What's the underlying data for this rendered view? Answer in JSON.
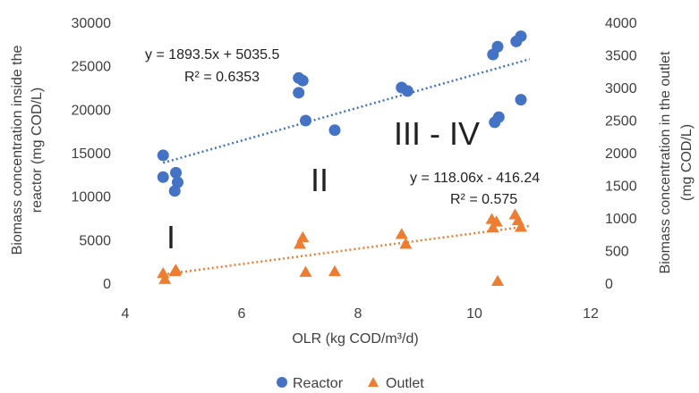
{
  "chart_data": {
    "type": "scatter",
    "xlabel": "OLR (kg COD/m³/d)",
    "ylabel": "Biomass concentration inside the reactor (mg COD/L)",
    "ylabel_lines": [
      "Biomass concentration inside the",
      "reactor (mg COD/L)"
    ],
    "y2label": "Biomass concentration in the outlet (mg COD/L)",
    "y2label_lines": [
      "Biomass concentration in the outlet",
      "(mg COD/L)"
    ],
    "xlim": [
      4,
      12
    ],
    "ylim": [
      0,
      30000
    ],
    "y2lim": [
      0,
      4000
    ],
    "xticks": [
      "4",
      "6",
      "8",
      "10",
      "12"
    ],
    "yticks": [
      "0",
      "5000",
      "10000",
      "15000",
      "20000",
      "25000",
      "30000"
    ],
    "y2ticks": [
      "0",
      "500",
      "1000",
      "1500",
      "2000",
      "2500",
      "3000",
      "3500",
      "4000"
    ],
    "grid": false,
    "legend_position": "bottom",
    "series": [
      {
        "name": "Reactor",
        "axis": "left",
        "marker": "circle",
        "color": "#4472C4",
        "points": [
          [
            4.65,
            14700
          ],
          [
            4.65,
            12200
          ],
          [
            4.87,
            12700
          ],
          [
            4.9,
            11600
          ],
          [
            4.85,
            10600
          ],
          [
            6.98,
            23600
          ],
          [
            7.05,
            23300
          ],
          [
            6.98,
            21900
          ],
          [
            7.1,
            18700
          ],
          [
            7.6,
            17600
          ],
          [
            8.75,
            22500
          ],
          [
            8.85,
            22100
          ],
          [
            10.32,
            26300
          ],
          [
            10.4,
            27200
          ],
          [
            10.35,
            18500
          ],
          [
            10.42,
            19100
          ],
          [
            10.72,
            27800
          ],
          [
            10.8,
            28400
          ],
          [
            10.8,
            21100
          ]
        ],
        "trendline": {
          "slope": 1893.5,
          "intercept": 5035.5,
          "x_range": [
            4.65,
            10.95
          ],
          "color": "#4472C4"
        },
        "equation": "y = 1893.5x + 5035.5",
        "r_squared": "R² = 0.6353"
      },
      {
        "name": "Outlet",
        "axis": "right",
        "marker": "triangle",
        "color": "#ED7D31",
        "points": [
          [
            4.65,
            150
          ],
          [
            4.68,
            60
          ],
          [
            4.85,
            180
          ],
          [
            4.87,
            200
          ],
          [
            7.0,
            600
          ],
          [
            7.05,
            700
          ],
          [
            7.1,
            170
          ],
          [
            7.6,
            180
          ],
          [
            8.75,
            750
          ],
          [
            8.82,
            600
          ],
          [
            10.3,
            980
          ],
          [
            10.32,
            850
          ],
          [
            10.38,
            940
          ],
          [
            10.4,
            30
          ],
          [
            10.7,
            1050
          ],
          [
            10.75,
            960
          ],
          [
            10.8,
            860
          ]
        ],
        "trendline": {
          "slope": 118.06,
          "intercept": -416.24,
          "x_range": [
            4.65,
            10.95
          ],
          "color": "#ED7D31"
        },
        "equation": "y = 118.06x - 416.24",
        "r_squared": "R² = 0.575"
      }
    ],
    "annotations": [
      "I",
      "II",
      "III - IV"
    ]
  }
}
